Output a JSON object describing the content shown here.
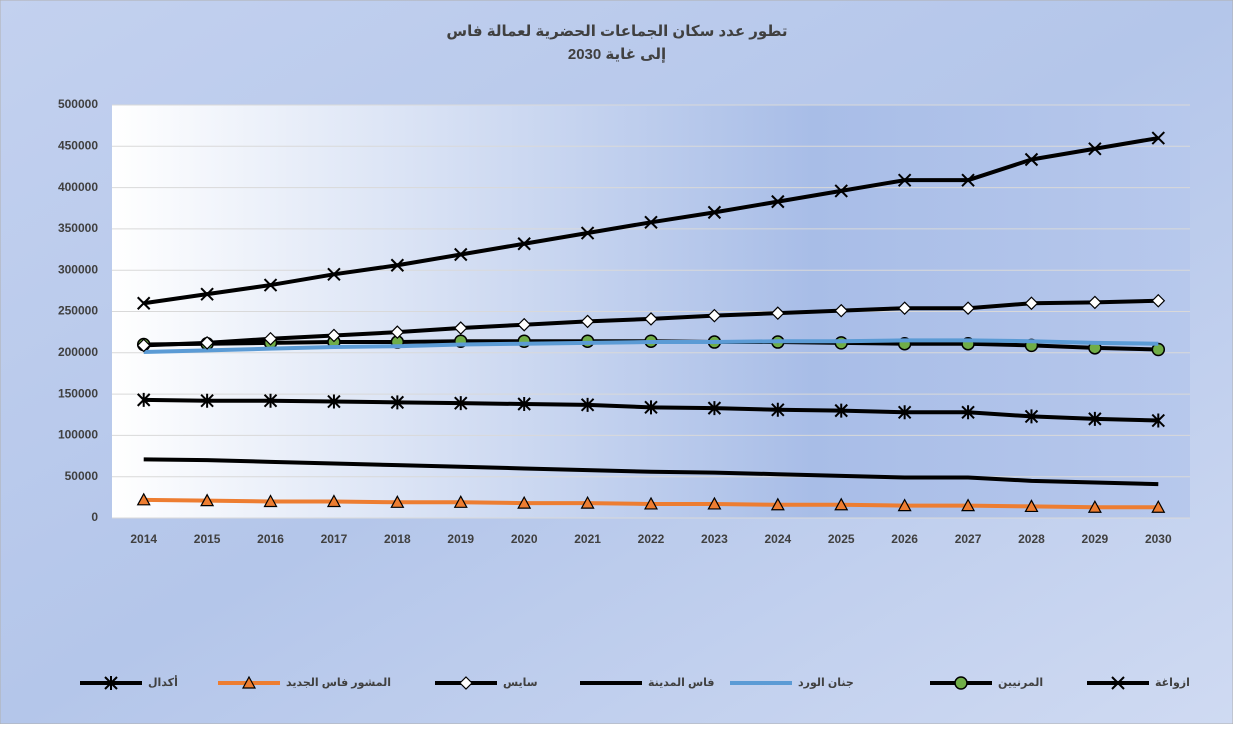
{
  "chart_data": {
    "type": "line",
    "title": "تطور عدد سكان الجماعات الحضرية لعمالة فاس",
    "subtitle": "إلى غاية 2030",
    "categories": [
      "2014",
      "2015",
      "2016",
      "2017",
      "2018",
      "2019",
      "2020",
      "2021",
      "2022",
      "2023",
      "2024",
      "2025",
      "2026",
      "2027",
      "2028",
      "2029",
      "2030"
    ],
    "ylim": [
      0,
      500000
    ],
    "yticks": [
      0,
      50000,
      100000,
      150000,
      200000,
      250000,
      300000,
      350000,
      400000,
      450000,
      500000
    ],
    "grid": true,
    "legend": "bottom",
    "series": [
      {
        "name": "ازواغة",
        "color": "#000000",
        "marker": "x",
        "marker_color": "#000000",
        "values": [
          260000,
          271000,
          282000,
          295000,
          306000,
          319000,
          332000,
          345000,
          358000,
          370000,
          383000,
          396000,
          409000,
          409000,
          434000,
          447000,
          460000
        ]
      },
      {
        "name": "المرنيين",
        "color": "#000000",
        "marker": "circle",
        "marker_color": "#70ad47",
        "values": [
          210000,
          211000,
          212000,
          213000,
          213000,
          214000,
          214000,
          214000,
          214000,
          213000,
          213000,
          212000,
          211000,
          211000,
          209000,
          206000,
          204000
        ]
      },
      {
        "name": "جنان الورد",
        "color": "#5b9bd5",
        "marker": "none",
        "marker_color": "#5b9bd5",
        "values": [
          201000,
          203000,
          205000,
          207000,
          208000,
          210000,
          211000,
          212000,
          213000,
          213000,
          214000,
          214000,
          215000,
          215000,
          214000,
          212000,
          211000
        ]
      },
      {
        "name": "فاس المدينة",
        "color": "#000000",
        "marker": "none",
        "marker_color": "#000000",
        "values": [
          71000,
          70000,
          68000,
          66000,
          64000,
          62000,
          60000,
          58000,
          56000,
          55000,
          53000,
          51000,
          49000,
          49000,
          45000,
          43000,
          41000
        ]
      },
      {
        "name": "سايس",
        "color": "#000000",
        "marker": "diamond",
        "marker_color": "#ffffff",
        "values": [
          209000,
          212000,
          217000,
          221000,
          225000,
          230000,
          234000,
          238000,
          241000,
          245000,
          248000,
          251000,
          254000,
          254000,
          260000,
          261000,
          263000
        ]
      },
      {
        "name": "المشور فاس الجديد",
        "color": "#ed7d31",
        "marker": "triangle",
        "marker_color": "#ed7d31",
        "values": [
          22000,
          21000,
          20000,
          20000,
          19000,
          19000,
          18000,
          18000,
          17000,
          17000,
          16000,
          16000,
          15000,
          15000,
          14000,
          13000,
          13000
        ]
      },
      {
        "name": "أكدال",
        "color": "#000000",
        "marker": "asterisk",
        "marker_color": "#000000",
        "values": [
          143000,
          142000,
          142000,
          141000,
          140000,
          139000,
          138000,
          137000,
          134000,
          133000,
          131000,
          130000,
          128000,
          128000,
          123000,
          120000,
          118000
        ]
      }
    ]
  }
}
